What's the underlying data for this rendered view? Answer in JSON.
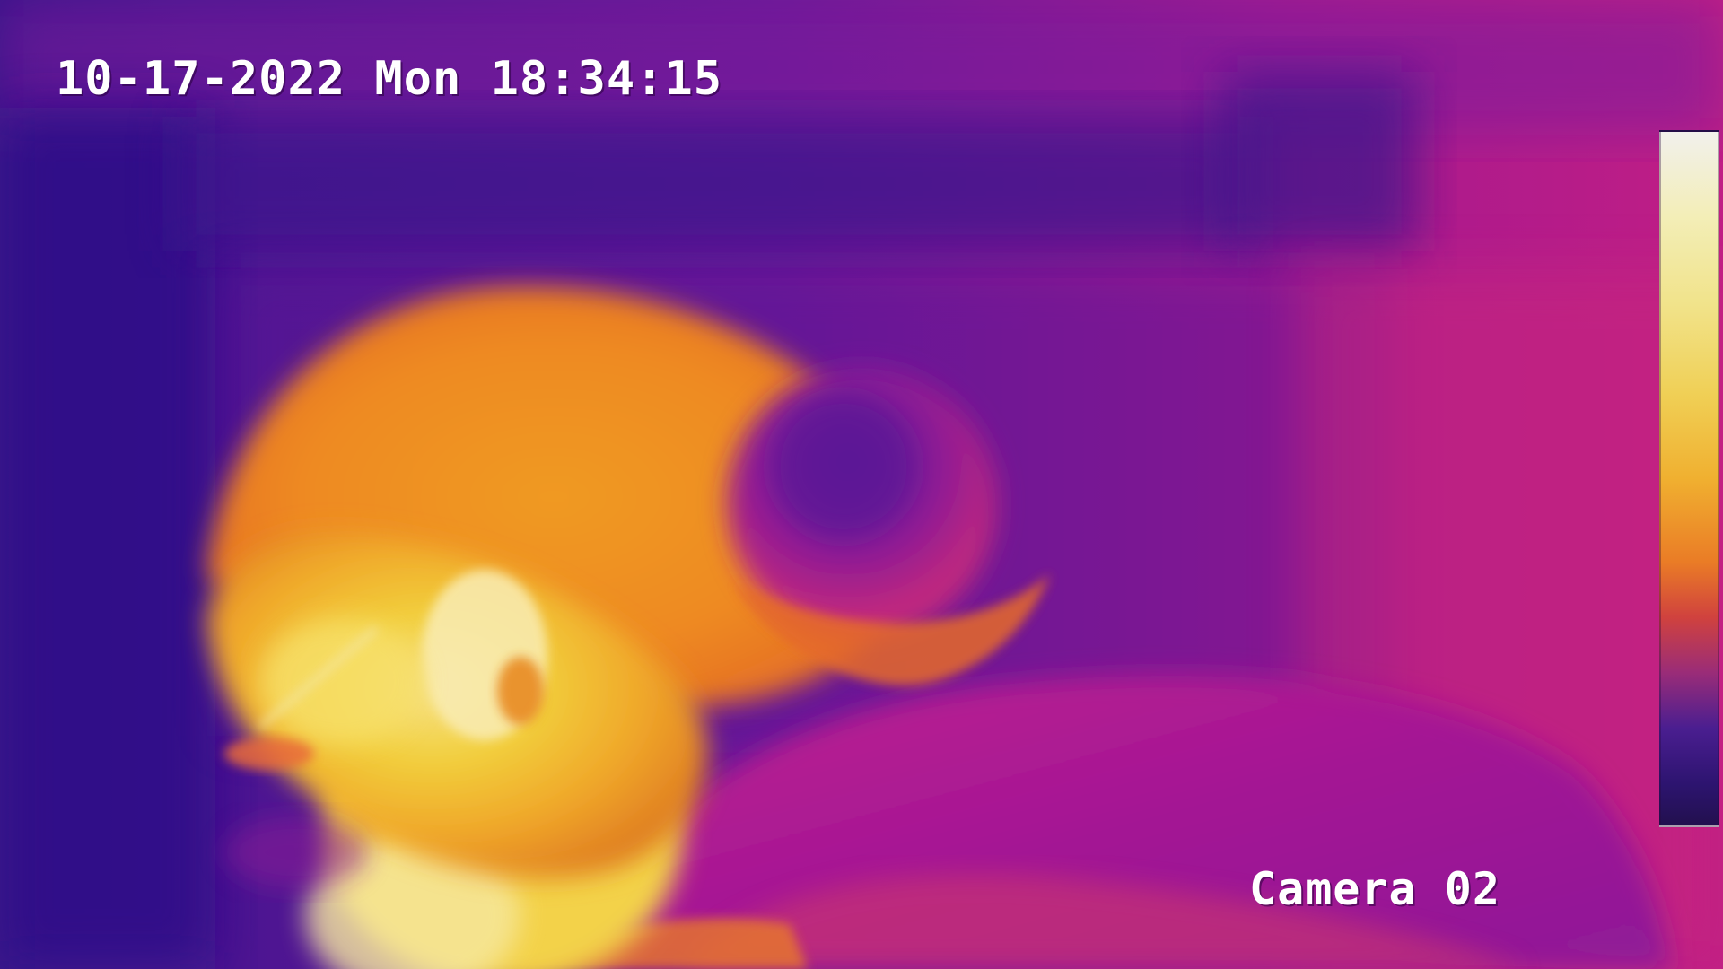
{
  "overlay": {
    "timestamp": "10-17-2022 Mon 18:34:15",
    "camera_label": "Camera 02"
  },
  "palette": {
    "name": "ironbow",
    "colors": {
      "cold": "#22104e",
      "cool": "#5a1a9a",
      "mid": "#b3198f",
      "warm": "#ea7c26",
      "hot": "#f0cf55",
      "hottest": "#f2f0ec"
    }
  }
}
